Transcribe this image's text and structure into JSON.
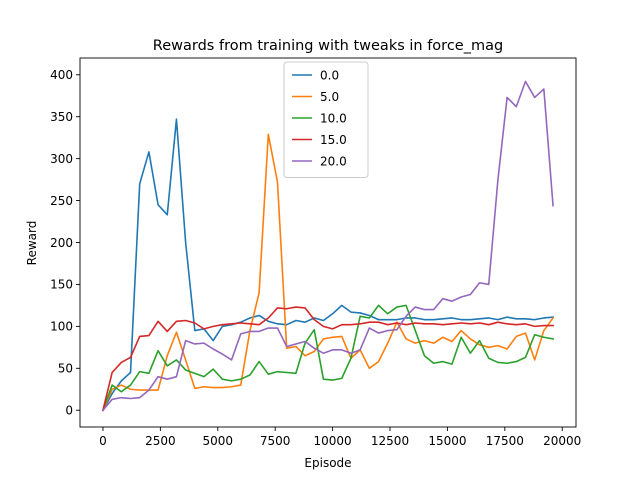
{
  "chart_data": {
    "type": "line",
    "title": "Rewards from training with tweaks in force_mag",
    "xlabel": "Episode",
    "ylabel": "Reward",
    "xlim": [
      -1000,
      20600
    ],
    "ylim": [
      -20,
      420
    ],
    "xticks": [
      0,
      2500,
      5000,
      7500,
      10000,
      12500,
      15000,
      17500,
      20000
    ],
    "yticks": [
      0,
      50,
      100,
      150,
      200,
      250,
      300,
      350,
      400
    ],
    "grid": false,
    "legend_placement": "top-center",
    "x": [
      0,
      400,
      800,
      1200,
      1600,
      2000,
      2400,
      2800,
      3200,
      3600,
      4000,
      4400,
      4800,
      5200,
      5600,
      6000,
      6400,
      6800,
      7200,
      7600,
      8000,
      8400,
      8800,
      9200,
      9600,
      10000,
      10400,
      10800,
      11200,
      11600,
      12000,
      12400,
      12800,
      13200,
      13600,
      14000,
      14400,
      14800,
      15200,
      15600,
      16000,
      16400,
      16800,
      17200,
      17600,
      18000,
      18400,
      18800,
      19200,
      19600
    ],
    "series": [
      {
        "name": "0.0",
        "color": "#1f77b4",
        "values": [
          0,
          20,
          35,
          45,
          270,
          308,
          245,
          233,
          347,
          200,
          95,
          97,
          83,
          100,
          102,
          105,
          110,
          113,
          106,
          103,
          102,
          107,
          105,
          110,
          107,
          115,
          125,
          117,
          116,
          113,
          108,
          108,
          108,
          110,
          110,
          108,
          108,
          109,
          110,
          108,
          108,
          109,
          110,
          108,
          111,
          109,
          109,
          108,
          110,
          111
        ]
      },
      {
        "name": "5.0",
        "color": "#ff7f0e",
        "values": [
          0,
          25,
          30,
          25,
          24,
          24,
          24,
          65,
          93,
          60,
          26,
          28,
          27,
          27,
          28,
          30,
          95,
          140,
          329,
          272,
          74,
          76,
          65,
          70,
          85,
          87,
          88,
          62,
          72,
          50,
          58,
          80,
          105,
          85,
          80,
          83,
          80,
          87,
          82,
          95,
          85,
          78,
          75,
          77,
          73,
          88,
          92,
          60,
          95,
          110
        ]
      },
      {
        "name": "10.0",
        "color": "#2ca02c",
        "values": [
          0,
          30,
          22,
          30,
          46,
          44,
          71,
          53,
          60,
          48,
          44,
          40,
          49,
          37,
          35,
          37,
          42,
          58,
          43,
          46,
          45,
          44,
          80,
          96,
          37,
          36,
          38,
          62,
          112,
          110,
          125,
          115,
          123,
          125,
          95,
          65,
          56,
          58,
          55,
          87,
          68,
          83,
          62,
          57,
          56,
          58,
          63,
          90,
          87,
          85
        ]
      },
      {
        "name": "15.0",
        "color": "#d62728",
        "values": [
          0,
          45,
          57,
          63,
          88,
          89,
          106,
          94,
          106,
          107,
          104,
          97,
          100,
          102,
          103,
          104,
          103,
          102,
          110,
          122,
          121,
          123,
          122,
          108,
          100,
          97,
          102,
          102,
          103,
          105,
          105,
          102,
          104,
          102,
          104,
          103,
          103,
          102,
          103,
          104,
          103,
          104,
          102,
          105,
          103,
          102,
          103,
          100,
          101,
          101
        ]
      },
      {
        "name": "20.0",
        "color": "#9467bd",
        "values": [
          0,
          13,
          15,
          14,
          15,
          24,
          40,
          37,
          40,
          83,
          79,
          80,
          73,
          67,
          60,
          91,
          94,
          94,
          98,
          98,
          76,
          79,
          82,
          74,
          68,
          72,
          72,
          68,
          72,
          98,
          92,
          95,
          96,
          112,
          123,
          120,
          120,
          133,
          130,
          135,
          138,
          152,
          150,
          275,
          373,
          362,
          392,
          373,
          383,
          244
        ]
      }
    ]
  }
}
